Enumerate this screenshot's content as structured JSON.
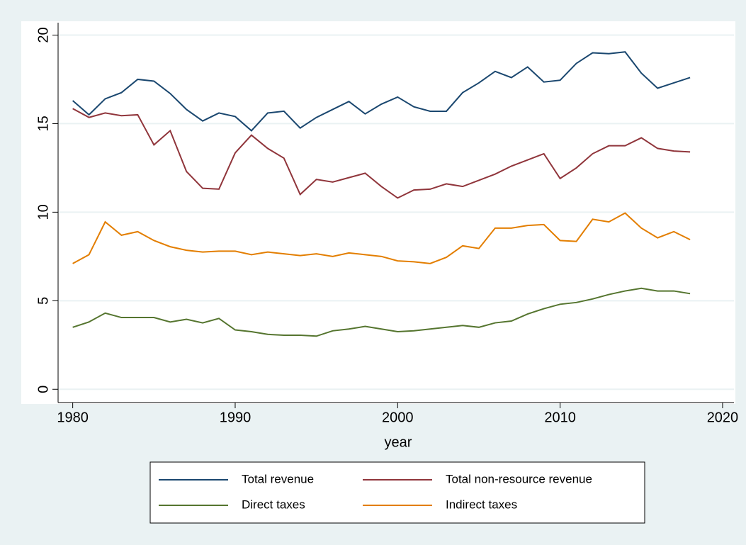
{
  "chart_data": {
    "type": "line",
    "x_label": "year",
    "x": [
      1980,
      1981,
      1982,
      1983,
      1984,
      1985,
      1986,
      1987,
      1988,
      1989,
      1990,
      1991,
      1992,
      1993,
      1994,
      1995,
      1996,
      1997,
      1998,
      1999,
      2000,
      2001,
      2002,
      2003,
      2004,
      2005,
      2006,
      2007,
      2008,
      2009,
      2010,
      2011,
      2012,
      2013,
      2014,
      2015,
      2016,
      2017,
      2018
    ],
    "series": [
      {
        "name": "Total revenue",
        "color": "#1a476f",
        "values": [
          16.3,
          15.5,
          16.4,
          16.75,
          17.5,
          17.4,
          16.7,
          15.8,
          15.15,
          15.6,
          15.4,
          14.6,
          15.6,
          15.7,
          14.75,
          15.35,
          15.8,
          16.25,
          15.55,
          16.1,
          16.5,
          15.95,
          15.7,
          15.7,
          16.75,
          17.3,
          17.95,
          17.6,
          18.2,
          17.35,
          17.45,
          18.4,
          19.0,
          18.95,
          19.05,
          17.85,
          17.0,
          17.3,
          17.6
        ]
      },
      {
        "name": "Total non-resource revenue",
        "color": "#90353b",
        "values": [
          15.85,
          15.35,
          15.6,
          15.45,
          15.5,
          13.8,
          14.6,
          12.3,
          11.35,
          11.3,
          13.35,
          14.35,
          13.6,
          13.05,
          11.0,
          11.85,
          11.7,
          11.95,
          12.2,
          11.45,
          10.8,
          11.25,
          11.3,
          11.6,
          11.45,
          11.8,
          12.15,
          12.6,
          12.95,
          13.3,
          11.9,
          12.5,
          13.3,
          13.75,
          13.75,
          14.2,
          13.6,
          13.45,
          13.4
        ]
      },
      {
        "name": "Direct taxes",
        "color": "#55752f",
        "values": [
          3.5,
          3.8,
          4.3,
          4.05,
          4.05,
          4.05,
          3.8,
          3.95,
          3.75,
          4.0,
          3.35,
          3.25,
          3.1,
          3.05,
          3.05,
          3.0,
          3.3,
          3.4,
          3.55,
          3.4,
          3.25,
          3.3,
          3.4,
          3.5,
          3.6,
          3.5,
          3.75,
          3.85,
          4.25,
          4.55,
          4.8,
          4.9,
          5.1,
          5.35,
          5.55,
          5.7,
          5.55,
          5.55,
          5.4
        ]
      },
      {
        "name": "Indirect taxes",
        "color": "#e37e00",
        "values": [
          7.1,
          7.6,
          9.45,
          8.7,
          8.9,
          8.4,
          8.05,
          7.85,
          7.75,
          7.8,
          7.8,
          7.6,
          7.75,
          7.65,
          7.55,
          7.65,
          7.5,
          7.7,
          7.6,
          7.5,
          7.25,
          7.2,
          7.1,
          7.45,
          8.1,
          7.95,
          9.1,
          9.1,
          9.25,
          9.3,
          8.4,
          8.35,
          9.6,
          9.45,
          9.95,
          9.1,
          8.55,
          8.9,
          8.45
        ]
      }
    ],
    "xlim": [
      1979.1,
      2020.7
    ],
    "xticks": [
      1980,
      1990,
      2000,
      2010,
      2020
    ],
    "ylim": [
      -0.75,
      20.7
    ],
    "yticks": [
      0,
      5,
      10,
      15,
      20
    ],
    "grid": true
  }
}
